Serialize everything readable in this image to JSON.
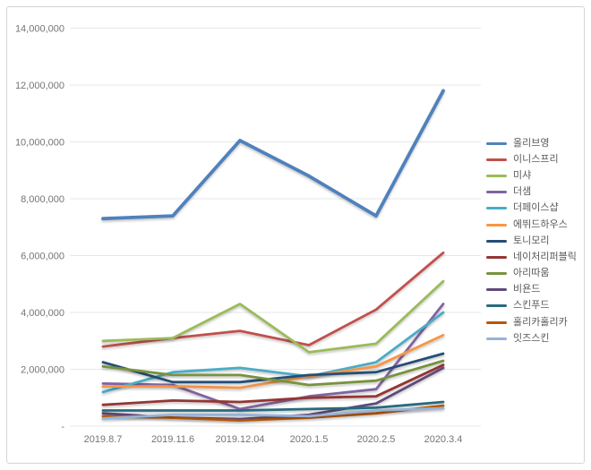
{
  "chart_data": {
    "type": "line",
    "title": "",
    "xlabel": "",
    "ylabel": "",
    "categories": [
      "2019.8.7",
      "2019.11.6",
      "2019.12.04",
      "2020.1.5",
      "2020.2.5",
      "2020.3.4"
    ],
    "ylim": [
      0,
      14000000
    ],
    "ytick_step": 2000000,
    "ytick_labels": [
      "-",
      "2,000,000",
      "4,000,000",
      "6,000,000",
      "8,000,000",
      "10,000,000",
      "12,000,000",
      "14,000,000"
    ],
    "grid": "horizontal-only",
    "legend_position": "right",
    "background_color": "#ffffff",
    "gridline_color": "#e7e7e7",
    "axis_label_color": "#757575",
    "legend_text_color": "#595959",
    "series": [
      {
        "name": "올리브영",
        "color": "#4f81bd",
        "values": [
          7300000,
          7400000,
          10050000,
          8800000,
          7400000,
          11800000
        ]
      },
      {
        "name": "이니스프리",
        "color": "#c0504d",
        "values": [
          2800000,
          3100000,
          3350000,
          2850000,
          4100000,
          6100000
        ]
      },
      {
        "name": "미샤",
        "color": "#9bbb59",
        "values": [
          3000000,
          3100000,
          4300000,
          2600000,
          2900000,
          5100000
        ]
      },
      {
        "name": "더샘",
        "color": "#8064a2",
        "values": [
          1500000,
          1450000,
          600000,
          1050000,
          1300000,
          4300000
        ]
      },
      {
        "name": "더페이스샵",
        "color": "#4bacc6",
        "values": [
          1200000,
          1900000,
          2050000,
          1750000,
          2250000,
          4000000
        ]
      },
      {
        "name": "에뛰드하우스",
        "color": "#f79646",
        "values": [
          1400000,
          1400000,
          1350000,
          1750000,
          2100000,
          3200000
        ]
      },
      {
        "name": "토니모리",
        "color": "#254e77",
        "values": [
          2250000,
          1550000,
          1550000,
          1800000,
          1900000,
          2550000
        ]
      },
      {
        "name": "네이처리퍼블릭",
        "color": "#943634",
        "values": [
          750000,
          900000,
          850000,
          1000000,
          1050000,
          2150000
        ]
      },
      {
        "name": "아리따움",
        "color": "#77933c",
        "values": [
          2100000,
          1800000,
          1800000,
          1450000,
          1600000,
          2300000
        ]
      },
      {
        "name": "비욘드",
        "color": "#604a7b",
        "values": [
          450000,
          300000,
          250000,
          400000,
          800000,
          2050000
        ]
      },
      {
        "name": "스킨푸드",
        "color": "#276a7e",
        "values": [
          550000,
          550000,
          550000,
          600000,
          650000,
          850000
        ]
      },
      {
        "name": "홀리카홀리카",
        "color": "#b65708",
        "values": [
          350000,
          300000,
          200000,
          300000,
          450000,
          720000
        ]
      },
      {
        "name": "잇즈스킨",
        "color": "#95b3d7",
        "values": [
          270000,
          400000,
          400000,
          350000,
          550000,
          630000
        ]
      }
    ]
  }
}
